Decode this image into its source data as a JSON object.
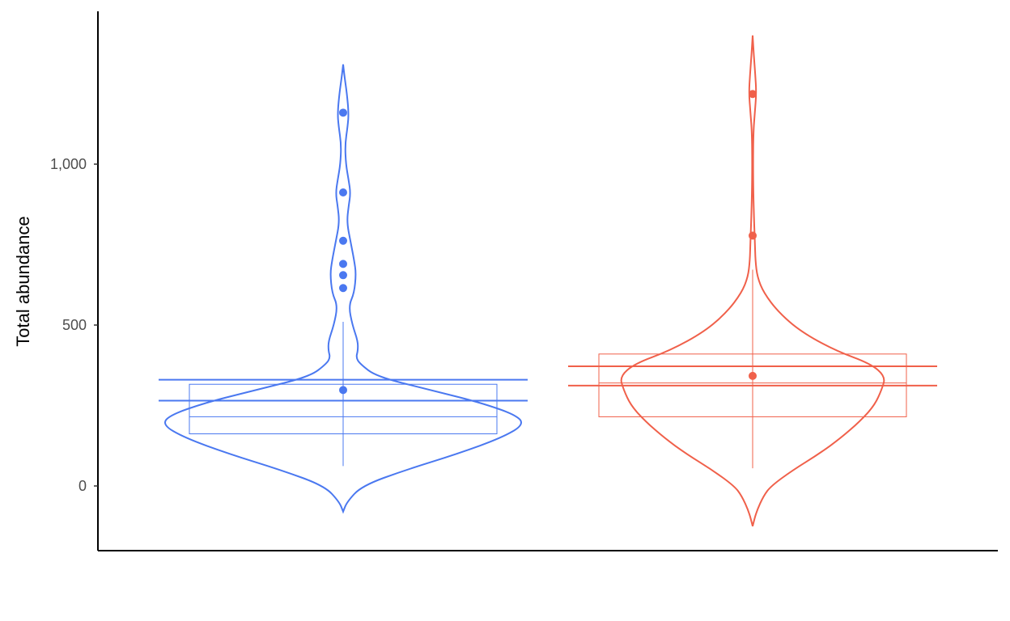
{
  "chart_data": {
    "type": "violin",
    "ylabel": "Total abundance",
    "xlabel": "",
    "ylim": [
      -200,
      1470
    ],
    "yticks": [
      0,
      500,
      1000
    ],
    "ytick_labels": [
      "0",
      "500",
      "1,000"
    ],
    "grid": false,
    "legend": "none",
    "groups": [
      {
        "color": "#4a78f0",
        "violin_ymin": -80,
        "violin_ymax": 1310,
        "violin_profile": [
          [
            -80,
            0.0
          ],
          [
            -50,
            0.02
          ],
          [
            0,
            0.1
          ],
          [
            50,
            0.34
          ],
          [
            100,
            0.62
          ],
          [
            150,
            0.86
          ],
          [
            190,
            0.98
          ],
          [
            220,
            0.94
          ],
          [
            260,
            0.74
          ],
          [
            300,
            0.46
          ],
          [
            340,
            0.18
          ],
          [
            380,
            0.09
          ],
          [
            400,
            0.07
          ],
          [
            420,
            0.08
          ],
          [
            450,
            0.08
          ],
          [
            500,
            0.05
          ],
          [
            560,
            0.03
          ],
          [
            600,
            0.06
          ],
          [
            660,
            0.07
          ],
          [
            700,
            0.06
          ],
          [
            760,
            0.04
          ],
          [
            820,
            0.02
          ],
          [
            870,
            0.03
          ],
          [
            910,
            0.04
          ],
          [
            950,
            0.03
          ],
          [
            1000,
            0.015
          ],
          [
            1060,
            0.01
          ],
          [
            1120,
            0.025
          ],
          [
            1160,
            0.03
          ],
          [
            1220,
            0.02
          ],
          [
            1270,
            0.008
          ],
          [
            1310,
            0.0
          ]
        ],
        "box": {
          "q1": 162,
          "median": 215,
          "q3": 316,
          "whisker_low": 62,
          "whisker_high": 510
        },
        "mean": 298,
        "mean_ci": [
          265,
          330
        ],
        "outliers": [
          615,
          655,
          690,
          762,
          912,
          1160
        ]
      },
      {
        "color": "#f0604a",
        "violin_ymin": -125,
        "violin_ymax": 1400,
        "violin_profile": [
          [
            -125,
            0.0
          ],
          [
            -80,
            0.02
          ],
          [
            -30,
            0.06
          ],
          [
            0,
            0.1
          ],
          [
            50,
            0.22
          ],
          [
            100,
            0.36
          ],
          [
            150,
            0.48
          ],
          [
            200,
            0.58
          ],
          [
            250,
            0.66
          ],
          [
            300,
            0.7
          ],
          [
            340,
            0.72
          ],
          [
            380,
            0.64
          ],
          [
            420,
            0.45
          ],
          [
            480,
            0.26
          ],
          [
            540,
            0.14
          ],
          [
            600,
            0.06
          ],
          [
            650,
            0.025
          ],
          [
            700,
            0.015
          ],
          [
            760,
            0.012
          ],
          [
            820,
            0.008
          ],
          [
            900,
            0.004
          ],
          [
            1000,
            0.002
          ],
          [
            1100,
            0.004
          ],
          [
            1160,
            0.012
          ],
          [
            1220,
            0.02
          ],
          [
            1280,
            0.014
          ],
          [
            1340,
            0.006
          ],
          [
            1400,
            0.0
          ]
        ],
        "box": {
          "q1": 215,
          "median": 320,
          "q3": 410,
          "whisker_low": 55,
          "whisker_high": 672
        },
        "mean": 342,
        "mean_ci": [
          312,
          372
        ],
        "outliers": [
          778,
          1218
        ]
      }
    ]
  }
}
